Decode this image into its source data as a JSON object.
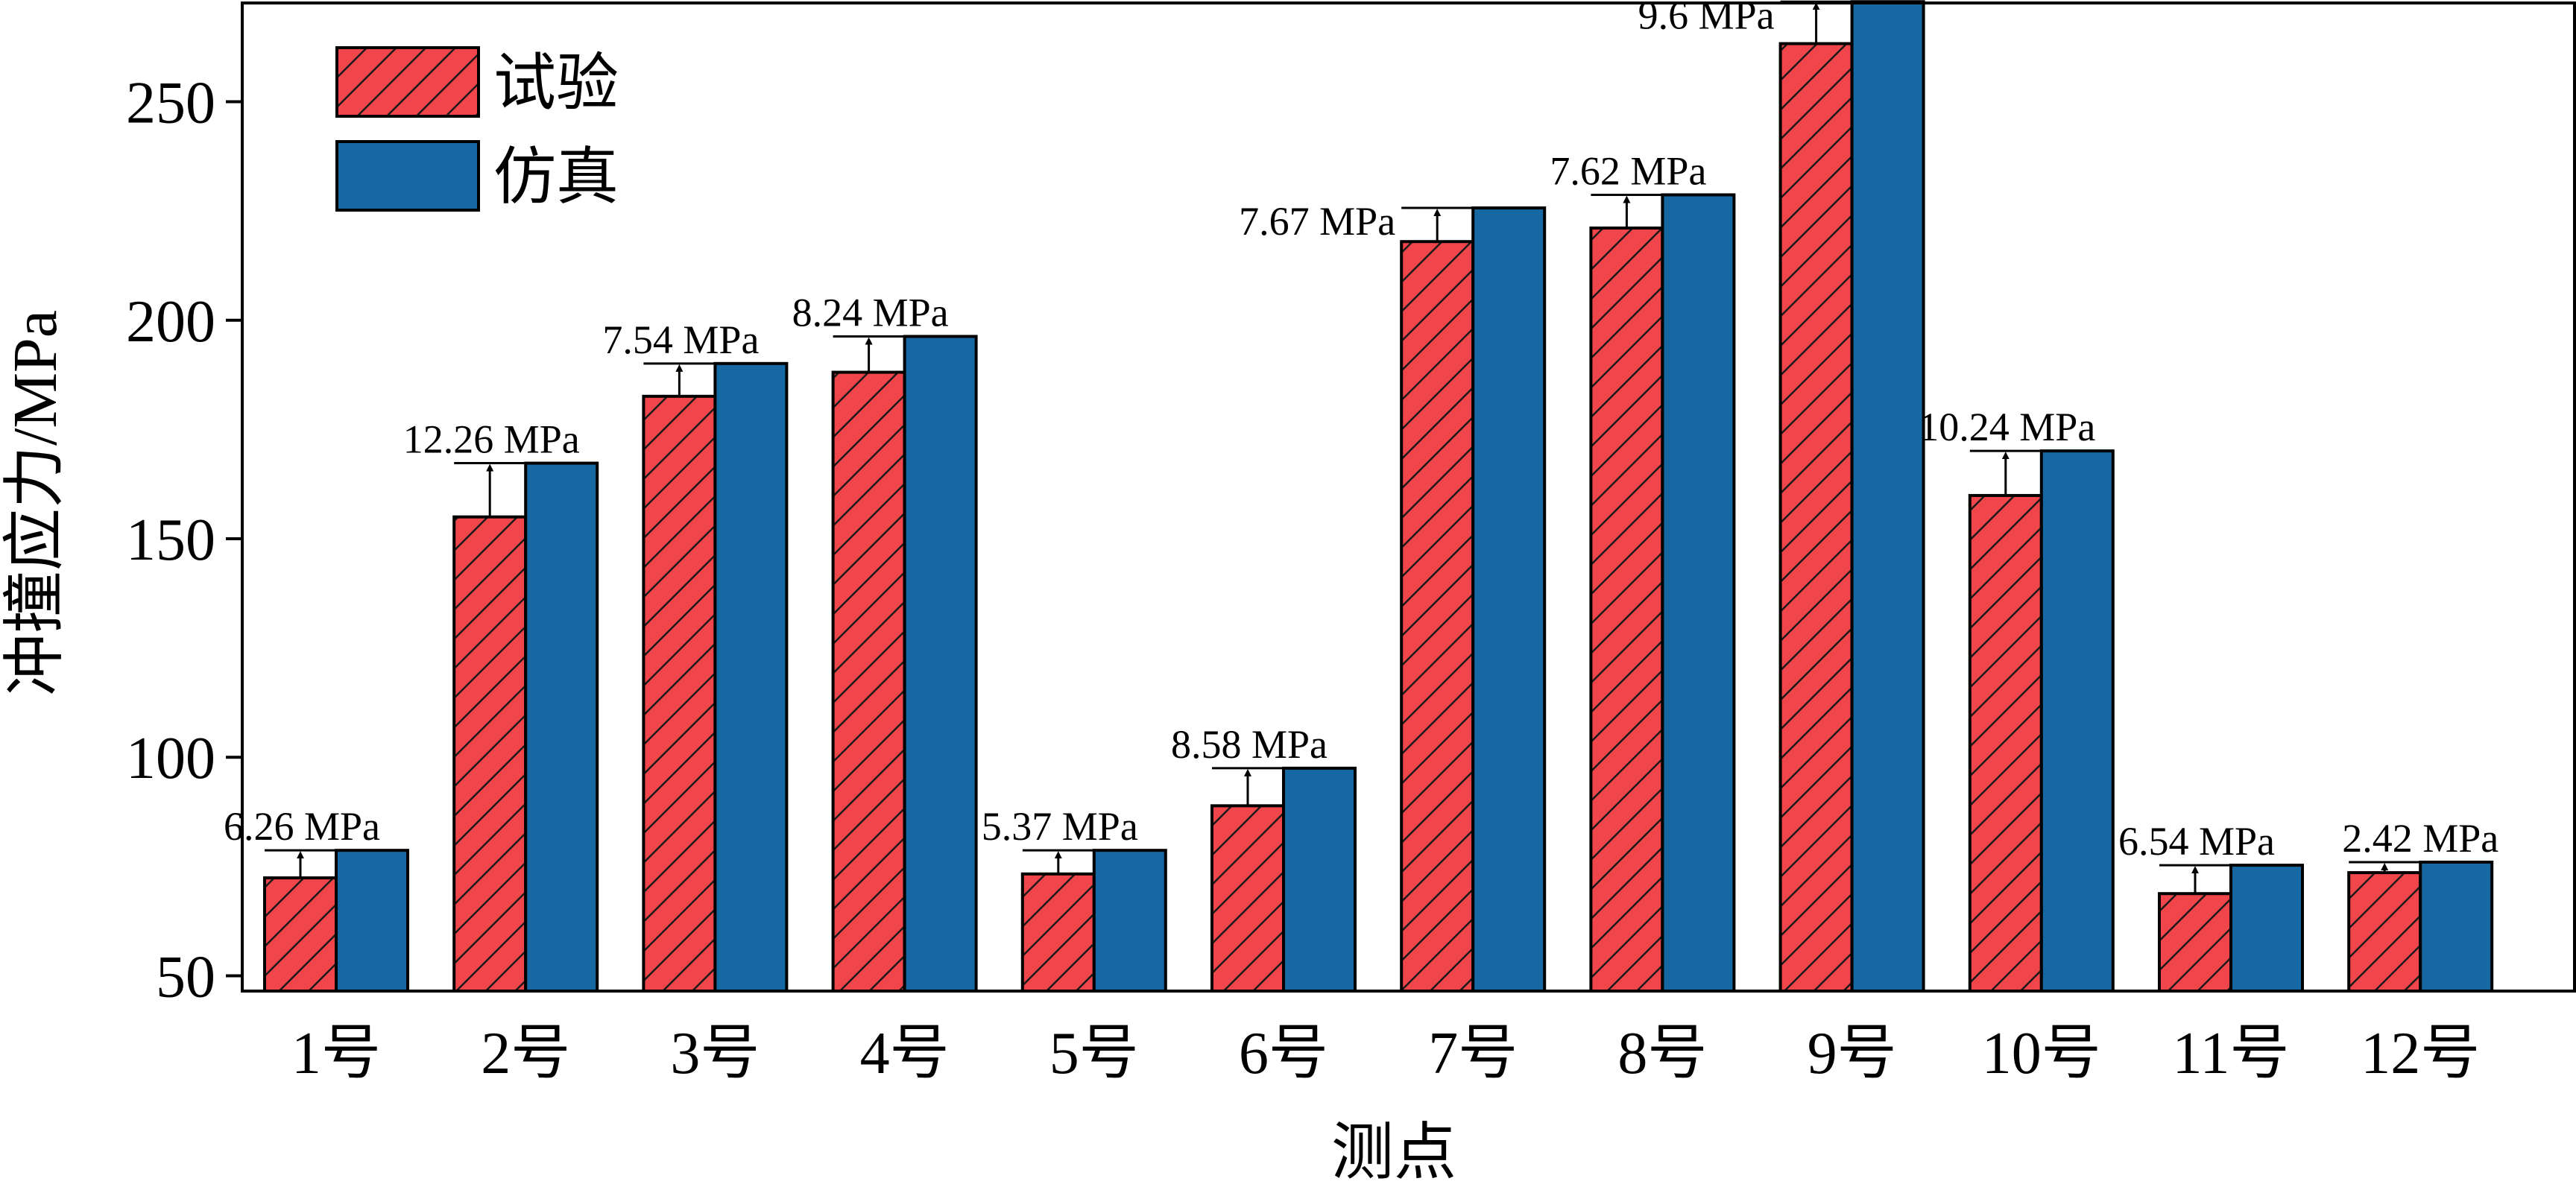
{
  "chart_data": {
    "type": "bar",
    "title": "",
    "xlabel": "测点",
    "ylabel": "冲撞应力/MPa",
    "ylim": [
      46.5,
      272.6
    ],
    "yticks": [
      50,
      100,
      150,
      200,
      250
    ],
    "grid": false,
    "legend_position": "top-left",
    "categories": [
      "1号",
      "2号",
      "3号",
      "4号",
      "5号",
      "6号",
      "7号",
      "8号",
      "9号",
      "10号",
      "11号",
      "12号"
    ],
    "series": [
      {
        "name": "试验",
        "color": "#f0464b",
        "pattern": "diagonal-hatch",
        "values": [
          72.4,
          155.0,
          182.6,
          188.1,
          73.3,
          88.9,
          218.0,
          221.1,
          263.3,
          159.9,
          68.8,
          73.6
        ]
      },
      {
        "name": "仿真",
        "color": "#1668a3",
        "pattern": "solid",
        "values": [
          78.7,
          167.3,
          190.1,
          196.3,
          78.7,
          97.5,
          225.7,
          228.7,
          272.9,
          170.1,
          75.3,
          76.0
        ]
      }
    ],
    "annotations": [
      "6.26 MPa",
      "12.26 MPa",
      "7.54 MPa",
      "8.24 MPa",
      "5.37 MPa",
      "8.58 MPa",
      "7.67 MPa",
      "7.62 MPa",
      "9.6 MPa",
      "10.24 MPa",
      "6.54 MPa",
      "2.42 MPa"
    ]
  }
}
